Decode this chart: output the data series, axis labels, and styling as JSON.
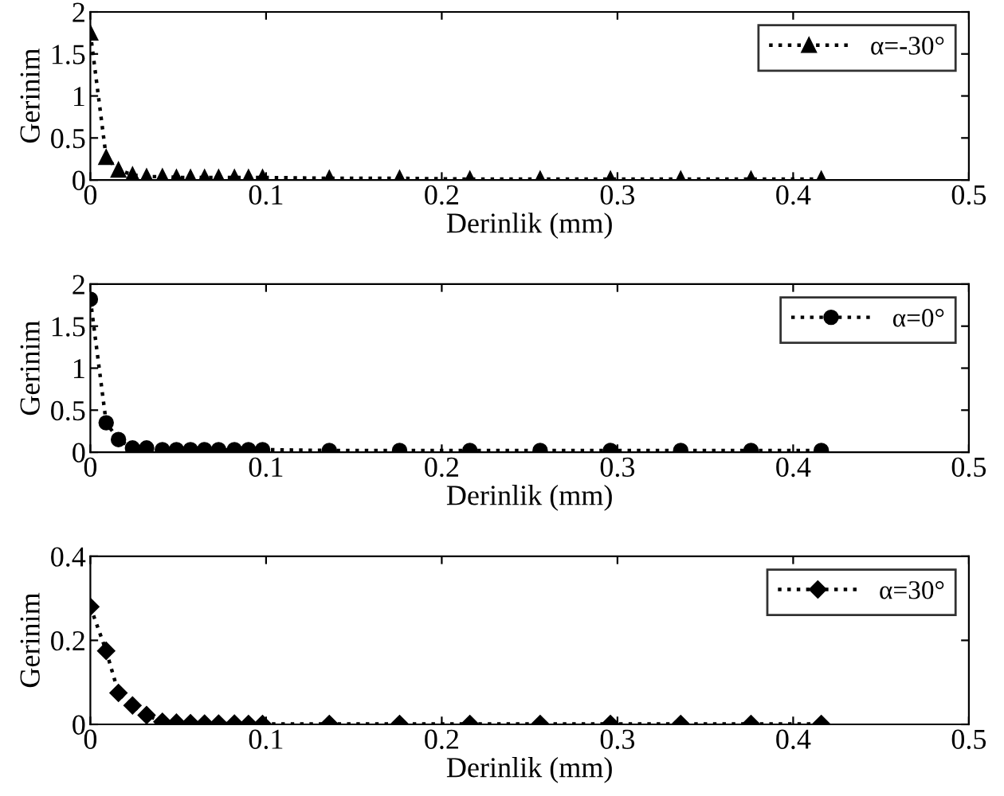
{
  "chart_data": [
    {
      "type": "line",
      "xlabel": "Derinlik (mm)",
      "ylabel": "Gerinim",
      "xlim": [
        0,
        0.5
      ],
      "ylim": [
        0,
        2
      ],
      "xticks": [
        0,
        0.1,
        0.2,
        0.3,
        0.4,
        0.5
      ],
      "yticks": [
        0,
        0.5,
        1,
        1.5,
        2
      ],
      "grid": false,
      "legend": "top right",
      "marker": "triangle",
      "line_style": "dotted",
      "x": [
        0,
        0.009,
        0.016,
        0.024,
        0.032,
        0.041,
        0.049,
        0.057,
        0.065,
        0.073,
        0.082,
        0.09,
        0.098,
        0.136,
        0.176,
        0.216,
        0.256,
        0.296,
        0.336,
        0.376,
        0.416
      ],
      "series": [
        {
          "name": "α=-30°",
          "color": "#000000",
          "values": [
            1.75,
            0.27,
            0.12,
            0.06,
            0.04,
            0.04,
            0.03,
            0.03,
            0.03,
            0.03,
            0.03,
            0.03,
            0.03,
            0.02,
            0.02,
            0.01,
            0.01,
            0.01,
            0.01,
            0.01,
            0.01
          ]
        }
      ]
    },
    {
      "type": "line",
      "xlabel": "Derinlik (mm)",
      "ylabel": "Gerinim",
      "xlim": [
        0,
        0.5
      ],
      "ylim": [
        0,
        2
      ],
      "xticks": [
        0,
        0.1,
        0.2,
        0.3,
        0.4,
        0.5
      ],
      "yticks": [
        0,
        0.5,
        1,
        1.5,
        2
      ],
      "grid": false,
      "legend": "top right",
      "marker": "circle",
      "line_style": "dotted",
      "x": [
        0,
        0.009,
        0.016,
        0.024,
        0.032,
        0.041,
        0.049,
        0.057,
        0.065,
        0.073,
        0.082,
        0.09,
        0.098,
        0.136,
        0.176,
        0.216,
        0.256,
        0.296,
        0.336,
        0.376,
        0.416
      ],
      "series": [
        {
          "name": "α=0°",
          "color": "#000000",
          "values": [
            1.82,
            0.35,
            0.15,
            0.05,
            0.05,
            0.03,
            0.03,
            0.03,
            0.03,
            0.03,
            0.03,
            0.03,
            0.03,
            0.02,
            0.02,
            0.02,
            0.02,
            0.02,
            0.02,
            0.02,
            0.02
          ]
        }
      ]
    },
    {
      "type": "line",
      "xlabel": "Derinlik (mm)",
      "ylabel": "Gerinim",
      "xlim": [
        0,
        0.5
      ],
      "ylim": [
        0,
        0.4
      ],
      "xticks": [
        0,
        0.1,
        0.2,
        0.3,
        0.4,
        0.5
      ],
      "yticks": [
        0,
        0.2,
        0.4
      ],
      "grid": false,
      "legend": "top right",
      "marker": "diamond",
      "line_style": "dotted",
      "x": [
        0,
        0.009,
        0.016,
        0.024,
        0.032,
        0.041,
        0.049,
        0.057,
        0.065,
        0.073,
        0.082,
        0.09,
        0.098,
        0.136,
        0.176,
        0.216,
        0.256,
        0.296,
        0.336,
        0.376,
        0.416
      ],
      "series": [
        {
          "name": "α=30°",
          "color": "#000000",
          "values": [
            0.28,
            0.175,
            0.075,
            0.045,
            0.022,
            0.006,
            0.004,
            0.003,
            0.002,
            0.002,
            0.002,
            0.001,
            0.001,
            0.001,
            0.001,
            0.001,
            0.001,
            0.001,
            0.001,
            0.001,
            0.001
          ]
        }
      ]
    }
  ]
}
